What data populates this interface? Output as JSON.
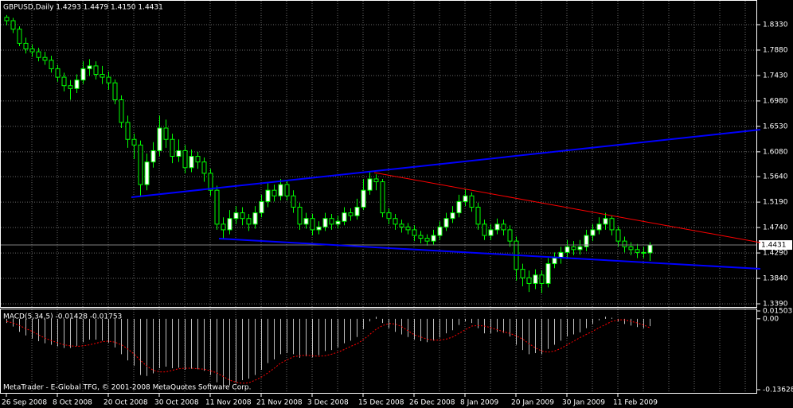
{
  "chart_data": [
    {
      "type": "candlestick",
      "title": "GBPUSD,Daily 1.4293 1.4479 1.4150 1.4431",
      "copyright": "MetaTrader - E-Global TFG, © 2001-2008 MetaQuotes Software Corp.",
      "categories": [
        "26 Sep 2008",
        null,
        null,
        null,
        null,
        null,
        null,
        null,
        "8 Oct 2008",
        null,
        null,
        null,
        null,
        null,
        null,
        null,
        "20 Oct 2008",
        null,
        null,
        null,
        null,
        null,
        null,
        null,
        "30 Oct 2008",
        null,
        null,
        null,
        null,
        null,
        null,
        null,
        "11 Nov 2008",
        null,
        null,
        null,
        null,
        null,
        null,
        null,
        "21 Nov 2008",
        null,
        null,
        null,
        null,
        null,
        null,
        null,
        "3 Dec 2008",
        null,
        null,
        null,
        null,
        null,
        null,
        null,
        "15 Dec 2008",
        null,
        null,
        null,
        null,
        null,
        null,
        null,
        "26 Dec 2008",
        null,
        null,
        null,
        null,
        null,
        null,
        null,
        "8 Jan 2009",
        null,
        null,
        null,
        null,
        null,
        null,
        null,
        "20 Jan 2009",
        null,
        null,
        null,
        null,
        null,
        null,
        null,
        "30 Jan 2009",
        null,
        null,
        null,
        null,
        null,
        null,
        null,
        "11 Feb 2009",
        null,
        null,
        null,
        null,
        null
      ],
      "open": [
        1.846,
        1.84,
        1.825,
        1.8,
        1.79,
        1.785,
        1.775,
        1.77,
        1.755,
        1.74,
        1.725,
        1.72,
        1.735,
        1.755,
        1.76,
        1.745,
        1.74,
        1.73,
        1.7,
        1.66,
        1.63,
        1.62,
        1.55,
        1.59,
        1.61,
        1.65,
        1.63,
        1.6,
        1.61,
        1.58,
        1.6,
        1.59,
        1.57,
        1.54,
        1.48,
        1.47,
        1.49,
        1.5,
        1.49,
        1.48,
        1.5,
        1.52,
        1.54,
        1.53,
        1.55,
        1.53,
        1.51,
        1.48,
        1.49,
        1.47,
        1.475,
        1.49,
        1.48,
        1.485,
        1.5,
        1.495,
        1.51,
        1.54,
        1.56,
        1.555,
        1.5,
        1.49,
        1.48,
        1.475,
        1.47,
        1.46,
        1.455,
        1.45,
        1.46,
        1.475,
        1.49,
        1.5,
        1.52,
        1.53,
        1.51,
        1.48,
        1.46,
        1.47,
        1.48,
        1.47,
        1.45,
        1.4,
        1.385,
        1.375,
        1.39,
        1.375,
        1.41,
        1.42,
        1.43,
        1.44,
        1.435,
        1.44,
        1.46,
        1.47,
        1.48,
        1.49,
        1.47,
        1.45,
        1.44,
        1.435,
        1.43,
        1.4293
      ],
      "high": [
        1.85,
        1.845,
        1.83,
        1.81,
        1.798,
        1.792,
        1.785,
        1.778,
        1.762,
        1.748,
        1.735,
        1.745,
        1.768,
        1.772,
        1.768,
        1.76,
        1.75,
        1.736,
        1.708,
        1.672,
        1.64,
        1.628,
        1.605,
        1.625,
        1.672,
        1.665,
        1.64,
        1.63,
        1.62,
        1.612,
        1.608,
        1.598,
        1.578,
        1.548,
        1.492,
        1.505,
        1.512,
        1.51,
        1.498,
        1.512,
        1.532,
        1.552,
        1.55,
        1.56,
        1.556,
        1.54,
        1.518,
        1.5,
        1.498,
        1.485,
        1.5,
        1.498,
        1.495,
        1.51,
        1.508,
        1.525,
        1.56,
        1.572,
        1.568,
        1.56,
        1.508,
        1.498,
        1.488,
        1.482,
        1.478,
        1.468,
        1.462,
        1.47,
        1.485,
        1.5,
        1.512,
        1.532,
        1.542,
        1.536,
        1.518,
        1.488,
        1.48,
        1.49,
        1.488,
        1.478,
        1.458,
        1.41,
        1.398,
        1.4,
        1.398,
        1.42,
        1.43,
        1.44,
        1.452,
        1.45,
        1.452,
        1.47,
        1.48,
        1.492,
        1.5,
        1.495,
        1.476,
        1.458,
        1.448,
        1.445,
        1.44,
        1.4479
      ],
      "low": [
        1.832,
        1.818,
        1.795,
        1.782,
        1.776,
        1.768,
        1.762,
        1.748,
        1.732,
        1.715,
        1.7,
        1.712,
        1.728,
        1.742,
        1.736,
        1.728,
        1.718,
        1.692,
        1.65,
        1.615,
        1.595,
        1.528,
        1.54,
        1.58,
        1.6,
        1.615,
        1.588,
        1.59,
        1.57,
        1.572,
        1.578,
        1.555,
        1.53,
        1.47,
        1.455,
        1.462,
        1.48,
        1.478,
        1.468,
        1.472,
        1.492,
        1.51,
        1.52,
        1.522,
        1.522,
        1.5,
        1.47,
        1.472,
        1.46,
        1.462,
        1.468,
        1.47,
        1.472,
        1.478,
        1.486,
        1.488,
        1.505,
        1.532,
        1.54,
        1.492,
        1.48,
        1.47,
        1.465,
        1.462,
        1.45,
        1.446,
        1.442,
        1.444,
        1.452,
        1.468,
        1.482,
        1.492,
        1.512,
        1.502,
        1.47,
        1.452,
        1.452,
        1.462,
        1.46,
        1.44,
        1.38,
        1.37,
        1.36,
        1.365,
        1.358,
        1.368,
        1.402,
        1.41,
        1.42,
        1.425,
        1.426,
        1.432,
        1.45,
        1.462,
        1.47,
        1.46,
        1.44,
        1.43,
        1.425,
        1.42,
        1.42,
        1.415
      ],
      "close": [
        1.84,
        1.825,
        1.8,
        1.79,
        1.785,
        1.775,
        1.77,
        1.755,
        1.74,
        1.725,
        1.72,
        1.735,
        1.755,
        1.76,
        1.745,
        1.74,
        1.73,
        1.7,
        1.66,
        1.63,
        1.62,
        1.55,
        1.59,
        1.61,
        1.65,
        1.63,
        1.6,
        1.61,
        1.58,
        1.6,
        1.59,
        1.57,
        1.54,
        1.48,
        1.47,
        1.49,
        1.5,
        1.49,
        1.48,
        1.5,
        1.52,
        1.54,
        1.53,
        1.55,
        1.53,
        1.51,
        1.48,
        1.49,
        1.47,
        1.475,
        1.49,
        1.48,
        1.485,
        1.5,
        1.495,
        1.51,
        1.54,
        1.56,
        1.555,
        1.5,
        1.49,
        1.48,
        1.475,
        1.47,
        1.46,
        1.455,
        1.45,
        1.46,
        1.475,
        1.49,
        1.5,
        1.52,
        1.53,
        1.51,
        1.48,
        1.46,
        1.47,
        1.48,
        1.47,
        1.45,
        1.4,
        1.385,
        1.375,
        1.39,
        1.375,
        1.41,
        1.42,
        1.43,
        1.44,
        1.435,
        1.44,
        1.46,
        1.47,
        1.48,
        1.49,
        1.47,
        1.45,
        1.44,
        1.435,
        1.43,
        1.429,
        1.4431
      ],
      "bull_color": "#ffffff",
      "bear_color": "#000000",
      "wick_color": "#00ff00",
      "ylim": [
        1.3334,
        1.8738
      ],
      "yticks": [
        {
          "value": 1.833,
          "label": "1.8330"
        },
        {
          "value": 1.788,
          "label": "1.7880"
        },
        {
          "value": 1.743,
          "label": "1.7430"
        },
        {
          "value": 1.698,
          "label": "1.6980"
        },
        {
          "value": 1.653,
          "label": "1.6530"
        },
        {
          "value": 1.608,
          "label": "1.6080"
        },
        {
          "value": 1.564,
          "label": "1.5640"
        },
        {
          "value": 1.519,
          "label": "1.5190"
        },
        {
          "value": 1.474,
          "label": "1.4740"
        },
        {
          "value": 1.429,
          "label": "1.4290"
        },
        {
          "value": 1.384,
          "label": "1.3840"
        },
        {
          "value": 1.339,
          "label": "1.3390"
        }
      ],
      "grid": true
    },
    {
      "type": "bar",
      "title": "MACD(5,34,5) -0.01428 -0.01753",
      "values": [
        -0.008,
        -0.015,
        -0.025,
        -0.032,
        -0.038,
        -0.043,
        -0.047,
        -0.05,
        -0.053,
        -0.056,
        -0.056,
        -0.052,
        -0.045,
        -0.04,
        -0.04,
        -0.042,
        -0.046,
        -0.055,
        -0.068,
        -0.08,
        -0.09,
        -0.108,
        -0.11,
        -0.105,
        -0.095,
        -0.092,
        -0.095,
        -0.094,
        -0.098,
        -0.096,
        -0.097,
        -0.1,
        -0.108,
        -0.122,
        -0.13,
        -0.128,
        -0.122,
        -0.118,
        -0.115,
        -0.108,
        -0.098,
        -0.085,
        -0.078,
        -0.068,
        -0.066,
        -0.068,
        -0.075,
        -0.072,
        -0.074,
        -0.07,
        -0.062,
        -0.06,
        -0.055,
        -0.047,
        -0.042,
        -0.035,
        -0.02,
        -0.005,
        0.004,
        -0.008,
        -0.018,
        -0.025,
        -0.03,
        -0.035,
        -0.04,
        -0.043,
        -0.045,
        -0.042,
        -0.036,
        -0.028,
        -0.022,
        -0.012,
        -0.005,
        -0.008,
        -0.018,
        -0.028,
        -0.028,
        -0.025,
        -0.027,
        -0.034,
        -0.05,
        -0.06,
        -0.068,
        -0.066,
        -0.068,
        -0.058,
        -0.05,
        -0.042,
        -0.034,
        -0.03,
        -0.026,
        -0.018,
        -0.01,
        -0.003,
        0.004,
        0.002,
        -0.005,
        -0.01,
        -0.013,
        -0.016,
        -0.018,
        -0.01428
      ],
      "signal": [
        -0.005,
        -0.008,
        -0.013,
        -0.019,
        -0.024,
        -0.031,
        -0.037,
        -0.042,
        -0.046,
        -0.05,
        -0.052,
        -0.053,
        -0.052,
        -0.05,
        -0.047,
        -0.044,
        -0.043,
        -0.045,
        -0.05,
        -0.058,
        -0.068,
        -0.08,
        -0.091,
        -0.099,
        -0.102,
        -0.102,
        -0.099,
        -0.096,
        -0.095,
        -0.095,
        -0.096,
        -0.097,
        -0.1,
        -0.104,
        -0.111,
        -0.118,
        -0.122,
        -0.124,
        -0.123,
        -0.118,
        -0.112,
        -0.104,
        -0.095,
        -0.085,
        -0.079,
        -0.073,
        -0.071,
        -0.07,
        -0.071,
        -0.072,
        -0.071,
        -0.068,
        -0.064,
        -0.059,
        -0.053,
        -0.048,
        -0.04,
        -0.03,
        -0.02,
        -0.013,
        -0.009,
        -0.01,
        -0.015,
        -0.023,
        -0.031,
        -0.035,
        -0.039,
        -0.041,
        -0.041,
        -0.039,
        -0.035,
        -0.028,
        -0.021,
        -0.014,
        -0.013,
        -0.014,
        -0.017,
        -0.021,
        -0.025,
        -0.028,
        -0.033,
        -0.039,
        -0.048,
        -0.056,
        -0.062,
        -0.064,
        -0.062,
        -0.057,
        -0.05,
        -0.043,
        -0.036,
        -0.03,
        -0.024,
        -0.017,
        -0.011,
        -0.005,
        -0.002,
        -0.002,
        -0.005,
        -0.008,
        -0.012,
        -0.01753
      ],
      "color": "#c0c0c0",
      "signal_color": "#ff0000",
      "ylim": [
        -0.13628,
        0.01503
      ],
      "yticks": [
        0.01503,
        {
          "value": 0,
          "label": "0.00"
        },
        -0.13628
      ]
    }
  ]
}
